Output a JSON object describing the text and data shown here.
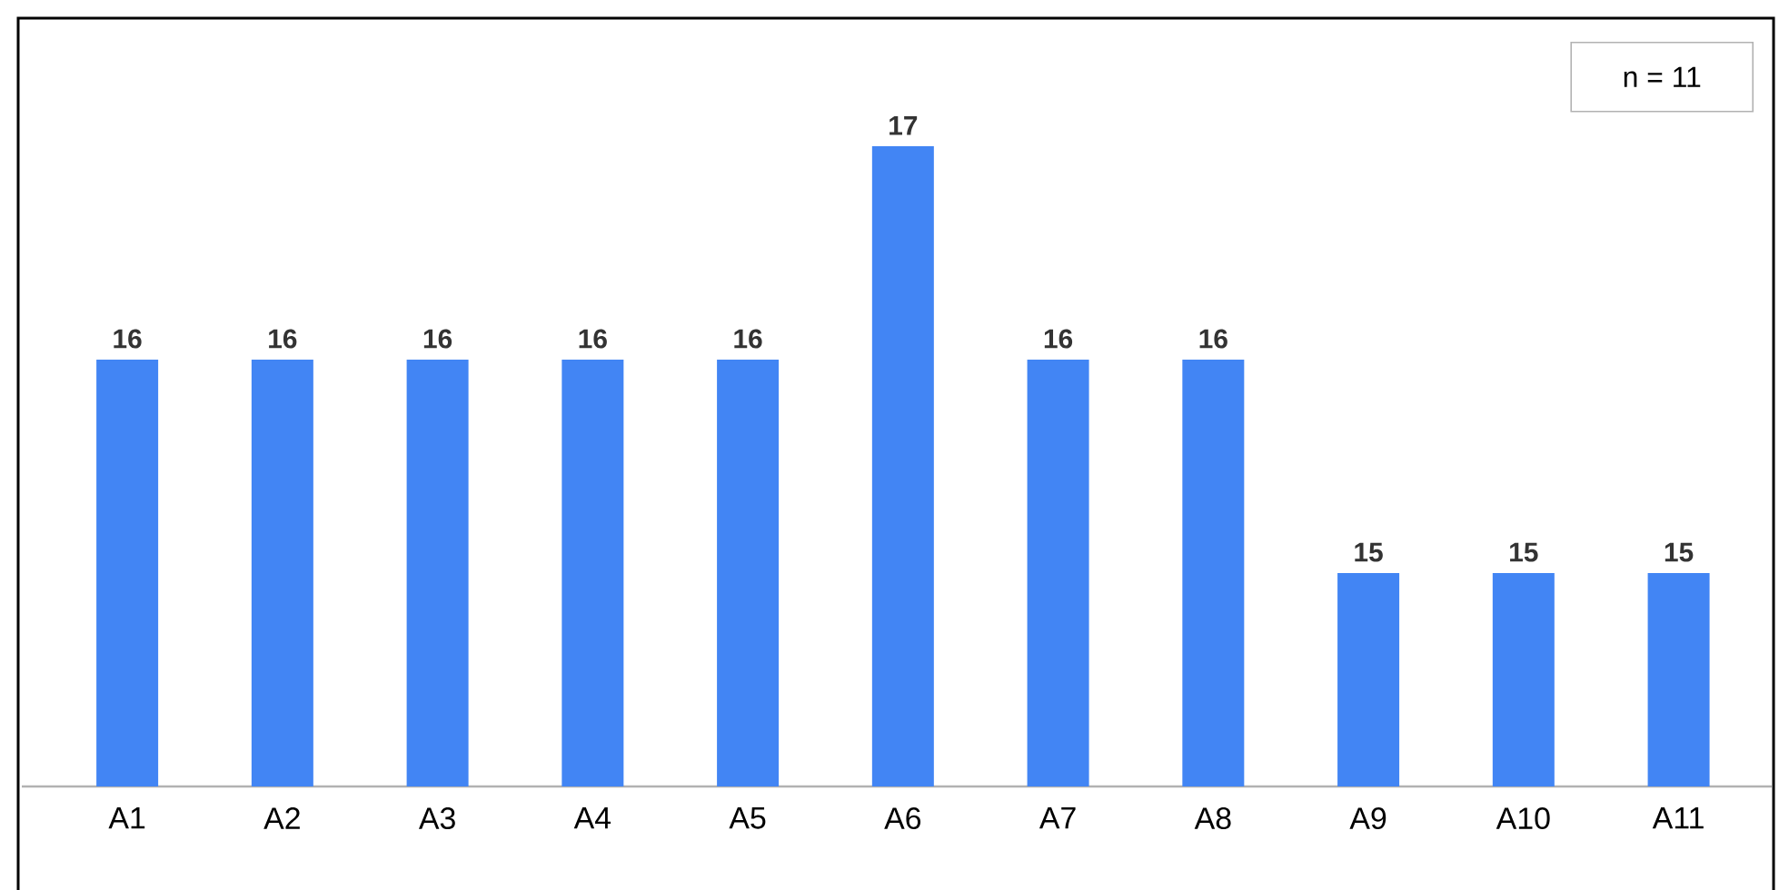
{
  "chart_data": {
    "type": "bar",
    "categories": [
      "A1",
      "A2",
      "A3",
      "A4",
      "A5",
      "A6",
      "A7",
      "A8",
      "A9",
      "A10",
      "A11"
    ],
    "values": [
      16,
      16,
      16,
      16,
      16,
      17,
      16,
      16,
      15,
      15,
      15
    ],
    "color": "#4285f4",
    "ylim": [
      14,
      17.6
    ],
    "data_labels": true,
    "tick_labels": "x",
    "annotations": [
      "n = 11"
    ]
  }
}
